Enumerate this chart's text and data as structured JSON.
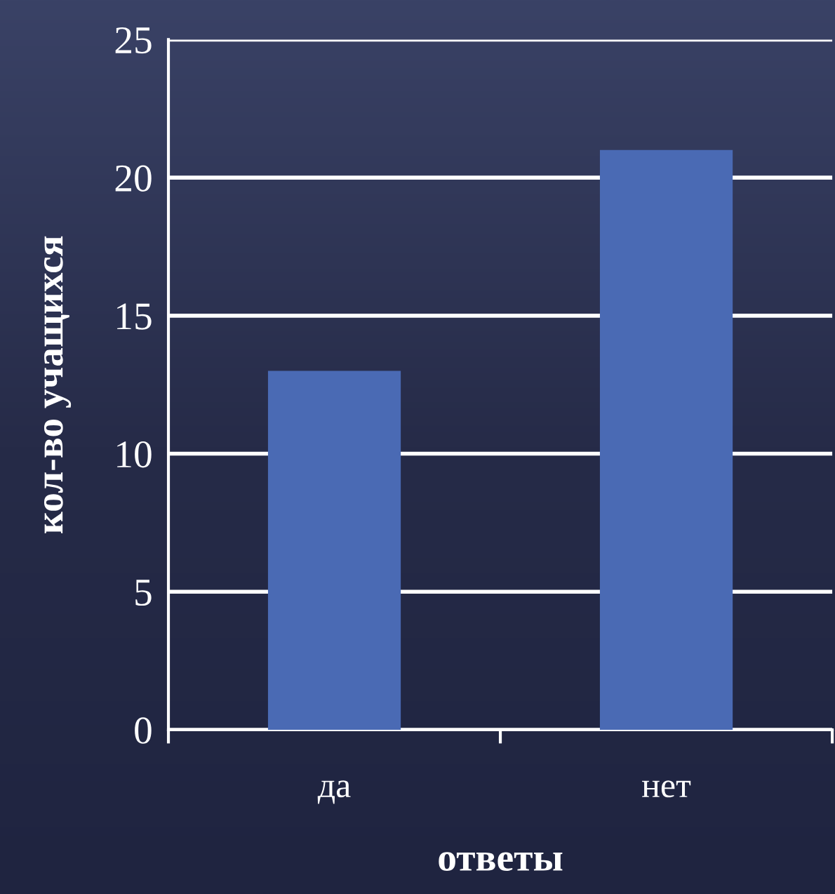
{
  "chart_data": {
    "type": "bar",
    "xlabel": "ответы",
    "ylabel": "кол-во учащихся",
    "categories": [
      "да",
      "нет"
    ],
    "values": [
      13,
      21
    ],
    "color": "#4a6ab4",
    "ylim": [
      0,
      25
    ],
    "yticks": [
      0,
      5,
      10,
      15,
      20,
      25
    ],
    "grid": "y"
  }
}
